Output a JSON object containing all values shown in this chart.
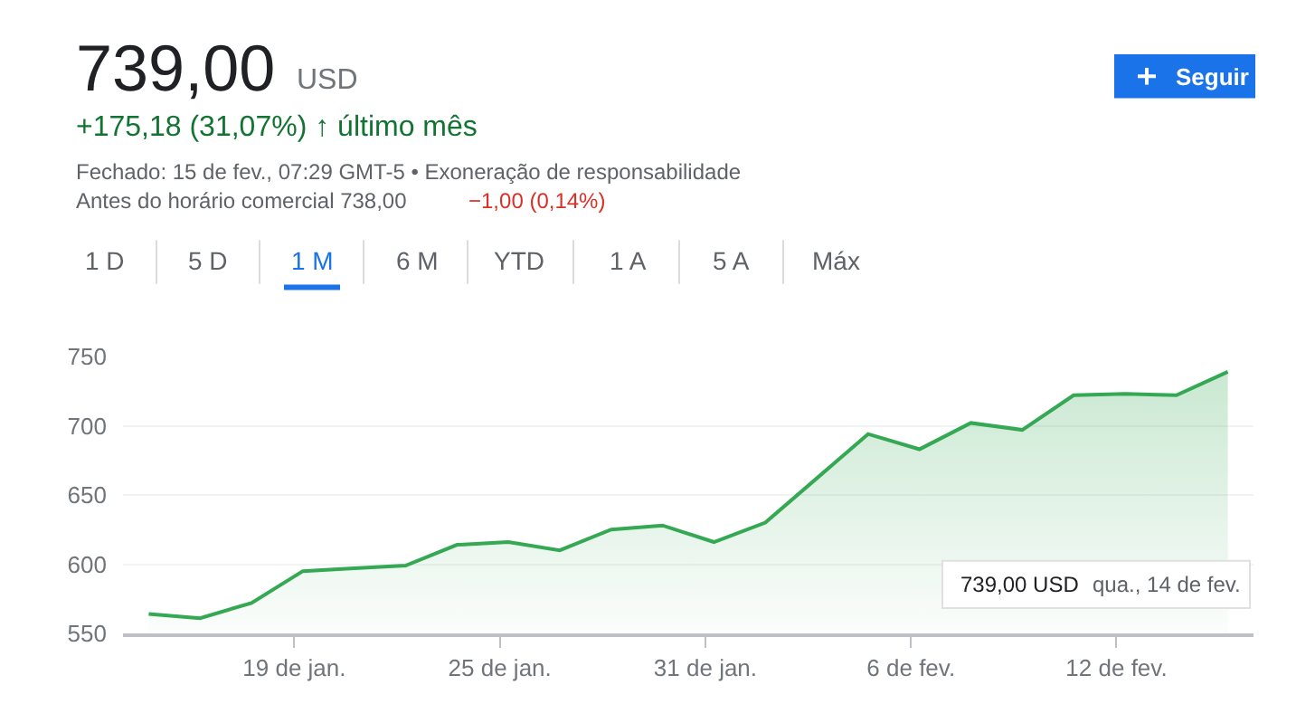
{
  "chart_data": {
    "type": "area",
    "title": "739,00",
    "annotations": [
      "USD",
      "+175,18 (31,07%) ↑ último mês",
      "Fechado: 15 de fev., 07:29 GMT-5 • Exoneração de responsabilidade",
      "Antes do horário comercial 738,00",
      "−1,00 (0,14%)",
      "Seguir",
      "1 D",
      "5 D",
      "1 M",
      "6 M",
      "YTD",
      "1 A",
      "5 A",
      "Máx",
      "739,00 USD",
      "qua., 14 de fev."
    ],
    "x": [
      "--01-14T18:00",
      "--01-16T06:00",
      "--01-17T18:00",
      "--01-19T06:00",
      "--01-20T18:00",
      "--01-22T06:00",
      "--01-23T18:00",
      "--01-25T06:00",
      "--01-26T18:00",
      "--01-28T06:00",
      "--01-29T18:00",
      "--01-31T06:00",
      "--02-01T18:00",
      "--02-03T06:00",
      "--02-04T18:00",
      "--02-06T06:00",
      "--02-07T18:00",
      "--02-09T06:00",
      "--02-10T18:00",
      "--02-12T06:00",
      "--02-13T18:00",
      "--02-15T06:00"
    ],
    "series": [
      {
        "color": "#34a853",
        "values": [
          564,
          561,
          572,
          595,
          597,
          599,
          614,
          616,
          610,
          625,
          628,
          616,
          630,
          662,
          694,
          683,
          702,
          697,
          722,
          723,
          722,
          739
        ]
      }
    ],
    "xlim": [
      "--01-14",
      "--02-16"
    ],
    "xticks": [
      {
        "value": "--01-19",
        "label": "19 de jan."
      },
      {
        "value": "--01-25",
        "label": "25 de jan."
      },
      {
        "value": "--01-31",
        "label": "31 de jan."
      },
      {
        "value": "--02-06",
        "label": "6 de fev."
      },
      {
        "value": "--02-12",
        "label": "12 de fev."
      }
    ],
    "ylim": [
      550,
      750
    ],
    "yticks": [
      550,
      600,
      650,
      700,
      750
    ],
    "grid": "y"
  }
}
